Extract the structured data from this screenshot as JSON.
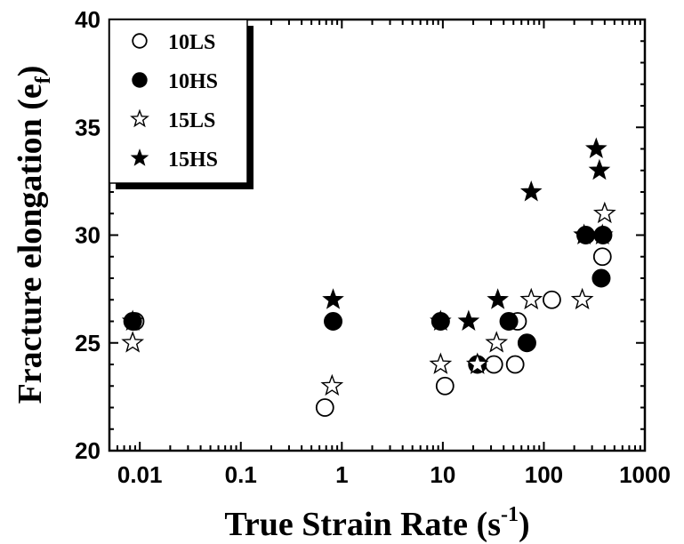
{
  "chart_data": {
    "type": "scatter",
    "xscale": "log",
    "xlim": [
      0.005,
      1000
    ],
    "ylim": [
      20,
      40
    ],
    "xticks": [
      {
        "value": 0.01,
        "label": "0.01"
      },
      {
        "value": 0.1,
        "label": "0.1"
      },
      {
        "value": 1,
        "label": "1"
      },
      {
        "value": 10,
        "label": "10"
      },
      {
        "value": 100,
        "label": "100"
      },
      {
        "value": 1000,
        "label": "1000"
      }
    ],
    "yticks": [
      {
        "value": 20,
        "label": "20"
      },
      {
        "value": 25,
        "label": "25"
      },
      {
        "value": 30,
        "label": "30"
      },
      {
        "value": 35,
        "label": "35"
      },
      {
        "value": 40,
        "label": "40"
      }
    ],
    "xlabel": {
      "main": "True Strain Rate (s",
      "sup": "-1",
      "close": ")"
    },
    "ylabel": {
      "main": "Fracture elongation (e",
      "sub": "f",
      "close": ")"
    },
    "legend_position": "top-left",
    "series": [
      {
        "name": "10LS",
        "marker": "open-circle",
        "points": [
          [
            0.009,
            26
          ],
          [
            0.68,
            22
          ],
          [
            10.5,
            23
          ],
          [
            32,
            24
          ],
          [
            52,
            24
          ],
          [
            55,
            26
          ],
          [
            120,
            27
          ],
          [
            380,
            29
          ]
        ]
      },
      {
        "name": "10HS",
        "marker": "filled-circle",
        "points": [
          [
            0.0085,
            26
          ],
          [
            0.82,
            26
          ],
          [
            9.5,
            26
          ],
          [
            22,
            24
          ],
          [
            45,
            26
          ],
          [
            68,
            25
          ],
          [
            260,
            30
          ],
          [
            370,
            28
          ],
          [
            385,
            30
          ]
        ]
      },
      {
        "name": "15LS",
        "marker": "open-star",
        "points": [
          [
            0.0085,
            25
          ],
          [
            0.8,
            23
          ],
          [
            9.5,
            24
          ],
          [
            22,
            24
          ],
          [
            34,
            25
          ],
          [
            75,
            27
          ],
          [
            240,
            27
          ],
          [
            400,
            31
          ]
        ]
      },
      {
        "name": "15HS",
        "marker": "filled-star",
        "points": [
          [
            0.0085,
            26
          ],
          [
            0.82,
            27
          ],
          [
            9.5,
            26
          ],
          [
            18,
            26
          ],
          [
            35,
            27
          ],
          [
            75,
            32
          ],
          [
            250,
            30
          ],
          [
            330,
            34
          ],
          [
            355,
            33
          ],
          [
            380,
            30
          ]
        ]
      }
    ]
  }
}
